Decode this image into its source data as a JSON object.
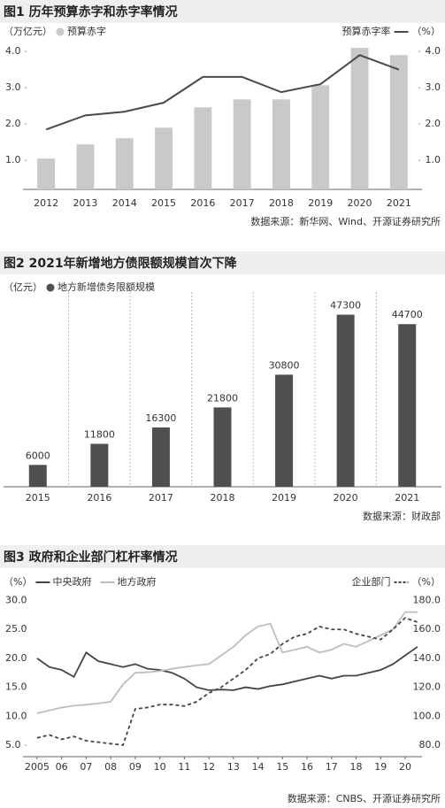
{
  "chart_data": [
    {
      "type": "bar",
      "title": "图1  历年预算赤字和赤字率情况",
      "y_unit": "（万亿元）",
      "y2_unit": "（%）",
      "categories": [
        "2012",
        "2013",
        "2014",
        "2015",
        "2016",
        "2017",
        "2018",
        "2019",
        "2020",
        "2021"
      ],
      "series": [
        {
          "name": "预算赤字",
          "type": "bar",
          "color": "#c9c9c9",
          "values": [
            1.05,
            1.44,
            1.61,
            1.9,
            2.46,
            2.68,
            2.68,
            3.07,
            4.1,
            3.9
          ]
        },
        {
          "name": "预算赤字率",
          "type": "line",
          "axis": "y2",
          "color": "#4a4a4a",
          "values": [
            1.85,
            2.24,
            2.34,
            2.59,
            3.3,
            3.3,
            2.88,
            3.1,
            3.9,
            3.5
          ]
        }
      ],
      "ylim": [
        0.2,
        4.2
      ],
      "yticks": [
        {
          "value": 1,
          "label": "1.0"
        },
        {
          "value": 2,
          "label": "2.0"
        },
        {
          "value": 3,
          "label": "3.0"
        },
        {
          "value": 4,
          "label": "4.0"
        }
      ],
      "y2lim": [
        0.2,
        4.2
      ],
      "y2ticks": [
        {
          "value": 1,
          "label": "1.0"
        },
        {
          "value": 2,
          "label": "2.0"
        },
        {
          "value": 3,
          "label": "3.0"
        },
        {
          "value": 4,
          "label": "4.0"
        }
      ],
      "source": "数据来源：新华网、Wind、开源证券研究所"
    },
    {
      "type": "bar",
      "title": "图2  2021年新增地方债限额规模首次下降",
      "y_unit": "（亿元）",
      "categories": [
        "2015",
        "2016",
        "2017",
        "2018",
        "2019",
        "2020",
        "2021"
      ],
      "series": [
        {
          "name": "地方新增债务限额规模",
          "type": "bar",
          "color": "#4f4f4f",
          "values": [
            6000,
            11800,
            16300,
            21800,
            30800,
            47300,
            44700
          ]
        }
      ],
      "value_labels": true,
      "source": "数据来源：财政部"
    },
    {
      "type": "line",
      "title": "图3  政府和企业部门杠杆率情况",
      "y_unit": "（%）",
      "y2_unit": "（%）",
      "x": [
        2005,
        2005.5,
        2006,
        2006.5,
        2007,
        2007.5,
        2008,
        2008.5,
        2009,
        2009.5,
        2010,
        2010.5,
        2011,
        2011.5,
        2012,
        2012.5,
        2013,
        2013.5,
        2014,
        2014.5,
        2015,
        2015.5,
        2016,
        2016.5,
        2017,
        2017.5,
        2018,
        2018.5,
        2019,
        2019.5,
        2020,
        2020.5
      ],
      "series": [
        {
          "name": "中央政府",
          "color": "#444444",
          "values": [
            20,
            18.5,
            18,
            16.8,
            21,
            19.5,
            19,
            18.5,
            19,
            18.2,
            18,
            17.5,
            16.5,
            15,
            14.5,
            14.6,
            14.5,
            15,
            14.7,
            15.2,
            15.5,
            16,
            16.5,
            17,
            16.5,
            17,
            17,
            17.5,
            18,
            19,
            20.5,
            22
          ]
        },
        {
          "name": "地方政府",
          "color": "#bdbdbd",
          "values": [
            10.5,
            11,
            11.5,
            11.8,
            12,
            12.2,
            12.5,
            15.5,
            17.5,
            17.6,
            17.8,
            18.2,
            18.5,
            18.8,
            19,
            20.5,
            22,
            24,
            25.5,
            26,
            21,
            21.5,
            22,
            21,
            21.5,
            22.5,
            22,
            23,
            24,
            25,
            28,
            28
          ]
        },
        {
          "name": "企业部门",
          "color": "#444444",
          "style": "dashed",
          "axis": "y2",
          "values": [
            85,
            87,
            84,
            86,
            83,
            82,
            81,
            80,
            105,
            106,
            108,
            108,
            107,
            110,
            116,
            120,
            126,
            132,
            140,
            143,
            150,
            155,
            157,
            162,
            160,
            160,
            157,
            155,
            153,
            160,
            168,
            165
          ]
        }
      ],
      "xlim": [
        2004.57,
        2020.54
      ],
      "xticks": [
        2005,
        {
          "value": 2006,
          "label": "06"
        },
        {
          "value": 2007,
          "label": "07"
        },
        {
          "value": 2008,
          "label": "08"
        },
        {
          "value": 2009,
          "label": "09"
        },
        {
          "value": 2010,
          "label": "10"
        },
        {
          "value": 2011,
          "label": "11"
        },
        {
          "value": 2012,
          "label": "12"
        },
        {
          "value": 2013,
          "label": "13"
        },
        {
          "value": 2014,
          "label": "14"
        },
        {
          "value": 2015,
          "label": "15"
        },
        {
          "value": 2016,
          "label": "16"
        },
        {
          "value": 2017,
          "label": "17"
        },
        {
          "value": 2018,
          "label": "18"
        },
        {
          "value": 2019,
          "label": "19"
        },
        {
          "value": 2020,
          "label": "20"
        }
      ],
      "ylim": [
        3,
        31
      ],
      "yticks": [
        {
          "value": 5,
          "label": "5.0"
        },
        {
          "value": 10,
          "label": "10.0"
        },
        {
          "value": 15,
          "label": "15.0"
        },
        {
          "value": 20,
          "label": "20.0"
        },
        {
          "value": 25,
          "label": "25.0"
        },
        {
          "value": 30,
          "label": "30.0"
        }
      ],
      "y2lim": [
        72,
        184
      ],
      "y2ticks": [
        {
          "value": 80,
          "label": "80.0"
        },
        {
          "value": 100,
          "label": "100.0"
        },
        {
          "value": 120,
          "label": "120.0"
        },
        {
          "value": 140,
          "label": "140.0"
        },
        {
          "value": 160,
          "label": "160.0"
        },
        {
          "value": 180,
          "label": "180.0"
        }
      ],
      "source": "数据来源：CNBS、开源证券研究所"
    }
  ]
}
